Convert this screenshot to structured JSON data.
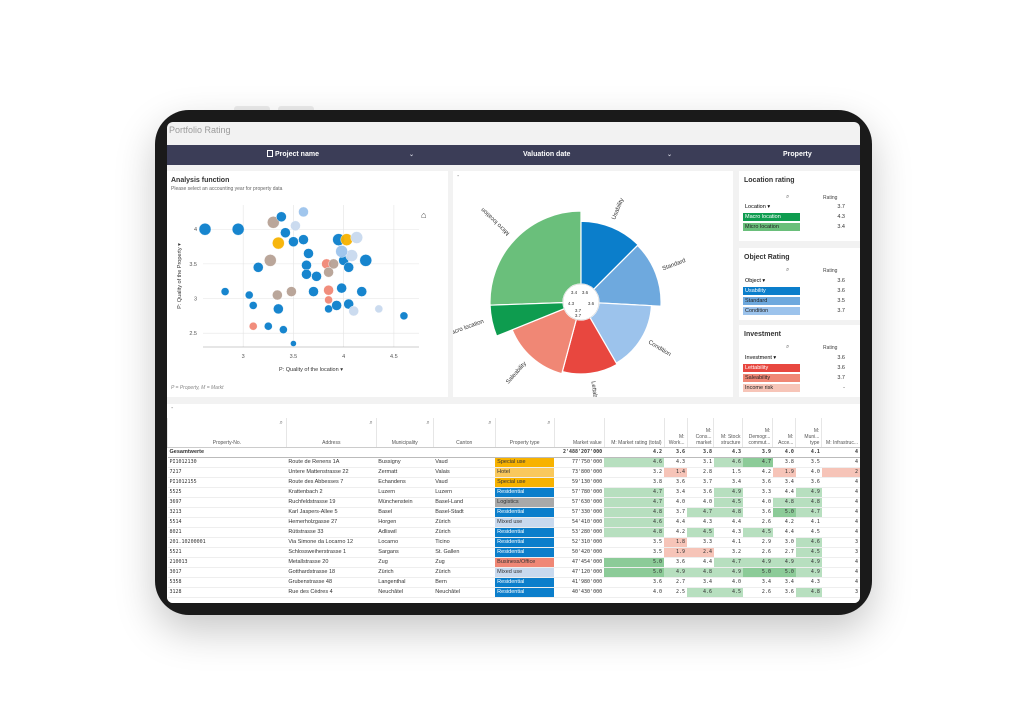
{
  "app": {
    "title": "Portfolio Rating"
  },
  "filters": [
    {
      "label": "Project name",
      "icon": "document-icon"
    },
    {
      "label": "Valuation date"
    },
    {
      "label": "Property"
    }
  ],
  "colors": {
    "header_bg": "#3b3d57",
    "dark_green": "#0e9c4f",
    "light_green": "#6abf7b",
    "dark_blue": "#0b7ecb",
    "light_blue": "#9cc3ec",
    "dark_red": "#e8473f",
    "light_red": "#f08775",
    "special_use": "#f7b200",
    "mixed_use": "#c8d9ee",
    "logistics": "#a9a9a9",
    "business": "#f08775"
  },
  "analysis": {
    "title": "Analysis function",
    "subtitle": "Please select an accounting year for property data",
    "xlabel": "P: Quality of the location",
    "ylabel": "P: Quality of the Property",
    "footnote": "P = Property, M = Markt",
    "xticks": [
      "3",
      "3.5",
      "4",
      "4.5"
    ],
    "yticks": [
      "4",
      "3.5",
      "3",
      "2.5"
    ]
  },
  "chart_data": [
    {
      "type": "scatter",
      "xlabel": "P: Quality of the location",
      "ylabel": "P: Quality of the Property",
      "xlim": [
        2.6,
        4.75
      ],
      "ylim": [
        2.3,
        4.35
      ],
      "series": [
        {
          "values": [
            {
              "x": 2.62,
              "y": 4.0,
              "c": "#0b7ecb",
              "r": 6
            },
            {
              "x": 2.95,
              "y": 4.0,
              "c": "#0b7ecb",
              "r": 6
            },
            {
              "x": 3.3,
              "y": 4.1,
              "c": "#b6a195",
              "r": 6
            },
            {
              "x": 3.38,
              "y": 4.18,
              "c": "#0b7ecb",
              "r": 5
            },
            {
              "x": 3.52,
              "y": 4.05,
              "c": "#c8d9ee",
              "r": 5
            },
            {
              "x": 3.6,
              "y": 4.25,
              "c": "#9cc3ec",
              "r": 5
            },
            {
              "x": 3.42,
              "y": 3.95,
              "c": "#0b7ecb",
              "r": 5
            },
            {
              "x": 3.5,
              "y": 3.82,
              "c": "#0b7ecb",
              "r": 5
            },
            {
              "x": 3.35,
              "y": 3.8,
              "c": "#f7b200",
              "r": 6
            },
            {
              "x": 3.6,
              "y": 3.85,
              "c": "#0b7ecb",
              "r": 5
            },
            {
              "x": 3.65,
              "y": 3.65,
              "c": "#0b7ecb",
              "r": 5
            },
            {
              "x": 3.27,
              "y": 3.55,
              "c": "#b6a195",
              "r": 6
            },
            {
              "x": 3.15,
              "y": 3.45,
              "c": "#0b7ecb",
              "r": 5
            },
            {
              "x": 3.63,
              "y": 3.48,
              "c": "#0b7ecb",
              "r": 5
            },
            {
              "x": 3.63,
              "y": 3.35,
              "c": "#0b7ecb",
              "r": 5
            },
            {
              "x": 3.83,
              "y": 3.5,
              "c": "#f08775",
              "r": 5
            },
            {
              "x": 3.9,
              "y": 3.5,
              "c": "#b6a195",
              "r": 5
            },
            {
              "x": 4.0,
              "y": 3.55,
              "c": "#0b7ecb",
              "r": 5
            },
            {
              "x": 3.95,
              "y": 3.85,
              "c": "#0b7ecb",
              "r": 6
            },
            {
              "x": 4.03,
              "y": 3.85,
              "c": "#f7b200",
              "r": 6
            },
            {
              "x": 4.13,
              "y": 3.88,
              "c": "#c8d9ee",
              "r": 6
            },
            {
              "x": 4.08,
              "y": 3.62,
              "c": "#c8d9ee",
              "r": 6
            },
            {
              "x": 4.22,
              "y": 3.55,
              "c": "#0b7ecb",
              "r": 6
            },
            {
              "x": 3.98,
              "y": 3.68,
              "c": "#9cc3ec",
              "r": 6
            },
            {
              "x": 3.85,
              "y": 3.38,
              "c": "#b6a195",
              "r": 5
            },
            {
              "x": 3.73,
              "y": 3.32,
              "c": "#0b7ecb",
              "r": 5
            },
            {
              "x": 4.05,
              "y": 3.45,
              "c": "#0b7ecb",
              "r": 5
            },
            {
              "x": 3.48,
              "y": 3.1,
              "c": "#b6a195",
              "r": 5
            },
            {
              "x": 3.7,
              "y": 3.1,
              "c": "#0b7ecb",
              "r": 5
            },
            {
              "x": 3.85,
              "y": 3.12,
              "c": "#f08775",
              "r": 5
            },
            {
              "x": 3.98,
              "y": 3.15,
              "c": "#0b7ecb",
              "r": 5
            },
            {
              "x": 4.18,
              "y": 3.1,
              "c": "#0b7ecb",
              "r": 5
            },
            {
              "x": 3.34,
              "y": 3.05,
              "c": "#b6a195",
              "r": 5
            },
            {
              "x": 2.82,
              "y": 3.1,
              "c": "#0b7ecb",
              "r": 4
            },
            {
              "x": 3.06,
              "y": 3.05,
              "c": "#0b7ecb",
              "r": 4
            },
            {
              "x": 3.1,
              "y": 2.9,
              "c": "#0b7ecb",
              "r": 4
            },
            {
              "x": 3.35,
              "y": 2.85,
              "c": "#0b7ecb",
              "r": 5
            },
            {
              "x": 3.85,
              "y": 2.98,
              "c": "#f08775",
              "r": 4
            },
            {
              "x": 3.85,
              "y": 2.85,
              "c": "#0b7ecb",
              "r": 4
            },
            {
              "x": 3.93,
              "y": 2.9,
              "c": "#0b7ecb",
              "r": 5
            },
            {
              "x": 4.05,
              "y": 2.92,
              "c": "#0b7ecb",
              "r": 5
            },
            {
              "x": 4.1,
              "y": 2.82,
              "c": "#c8d9ee",
              "r": 5
            },
            {
              "x": 4.35,
              "y": 2.85,
              "c": "#c8d9ee",
              "r": 4
            },
            {
              "x": 3.1,
              "y": 2.6,
              "c": "#f08775",
              "r": 4
            },
            {
              "x": 3.25,
              "y": 2.6,
              "c": "#0b7ecb",
              "r": 4
            },
            {
              "x": 3.4,
              "y": 2.55,
              "c": "#0b7ecb",
              "r": 4
            },
            {
              "x": 4.6,
              "y": 2.75,
              "c": "#0b7ecb",
              "r": 4
            },
            {
              "x": 3.5,
              "y": 2.35,
              "c": "#0b7ecb",
              "r": 3
            }
          ]
        }
      ]
    },
    {
      "type": "pie",
      "categories": [
        "Micro location",
        "Usability",
        "Standard",
        "Condition",
        "Lettability",
        "Saleability",
        "Macro location"
      ],
      "values": [
        3.4,
        3.6,
        3.5,
        3.7,
        3.6,
        3.7,
        4.3
      ],
      "slices": [
        {
          "label": "Micro location",
          "color": "#6abf7b",
          "start": -92,
          "end": 0,
          "r": 1.0
        },
        {
          "label": "Usability",
          "color": "#0b7ecb",
          "start": 0,
          "end": 45,
          "r": 0.86
        },
        {
          "label": "Standard",
          "color": "#6ea9de",
          "start": 45,
          "end": 93,
          "r": 0.85
        },
        {
          "label": "Condition",
          "color": "#9cc3ec",
          "start": 93,
          "end": 150,
          "r": 0.72
        },
        {
          "label": "Lettability",
          "color": "#e8473f",
          "start": 150,
          "end": 195,
          "r": 0.74
        },
        {
          "label": "Saleability",
          "color": "#f08775",
          "start": 195,
          "end": 248,
          "r": 0.77
        },
        {
          "label": "Macro location",
          "color": "#0e9c4f",
          "start": 248,
          "end": 268,
          "r": 1.0
        }
      ],
      "center_labels": [
        "3.4",
        "3.6",
        "4.3",
        "3.6",
        "3.7",
        "3.7"
      ]
    }
  ],
  "location_rating": {
    "title": "Location rating",
    "col_header": "Rating",
    "rows": [
      {
        "label": "Location",
        "value": "3.7",
        "color": ""
      },
      {
        "label": "Macro location",
        "value": "4.3",
        "color": "#0e9c4f"
      },
      {
        "label": "Micro location",
        "value": "3.4",
        "color": "#6abf7b"
      }
    ]
  },
  "object_rating": {
    "title": "Object Rating",
    "col_header": "Rating",
    "rows": [
      {
        "label": "Object",
        "value": "3.6",
        "color": ""
      },
      {
        "label": "Usability",
        "value": "3.6",
        "color": "#0b7ecb"
      },
      {
        "label": "Standard",
        "value": "3.5",
        "color": "#6ea9de"
      },
      {
        "label": "Condition",
        "value": "3.7",
        "color": "#9cc3ec"
      }
    ]
  },
  "investment": {
    "title": "Investment",
    "col_header": "Rating",
    "rows": [
      {
        "label": "Investment",
        "value": "3.6",
        "color": ""
      },
      {
        "label": "Lettability",
        "value": "3.6",
        "color": "#e8473f"
      },
      {
        "label": "Saleability",
        "value": "3.7",
        "color": "#f08775"
      },
      {
        "label": "Income risk",
        "value": "-",
        "color": "#f7c5b8"
      }
    ]
  },
  "table": {
    "columns": [
      "Property-No.",
      "Address",
      "Municipality",
      "Canton",
      "Property type",
      "Market value",
      "M: Market rating (total)",
      "M: Work...",
      "M: Cons... market",
      "M: Stock structure",
      "M: Demogr... commut...",
      "M: Acce...",
      "M: Muni... type",
      "M: Infrastruc..."
    ],
    "total": {
      "label": "Gesamtwerte",
      "market_value": "2'488'207'000",
      "ratings": [
        "4.2",
        "3.6",
        "3.8",
        "4.3",
        "3.9",
        "4.0",
        "4.1",
        "4"
      ]
    },
    "rows": [
      {
        "no": "PI1012130",
        "addr": "Route de Renens 1A",
        "muni": "Bussigny",
        "canton": "Vaud",
        "type": "Special use",
        "tc": "#f7b200",
        "mv": "77'750'000",
        "r": [
          "4.6",
          "4.3",
          "3.1",
          "4.6",
          "4.7",
          "3.8",
          "3.5",
          "4"
        ],
        "rc": [
          "g",
          "",
          "",
          "g",
          "G",
          "",
          "",
          ""
        ]
      },
      {
        "no": "7217",
        "addr": "Untere Mattenstrasse 22",
        "muni": "Zermatt",
        "canton": "Valais",
        "type": "Hotel",
        "tc": "#f9c85c",
        "mv": "73'800'000",
        "r": [
          "3.2",
          "1.4",
          "2.8",
          "1.5",
          "4.2",
          "1.9",
          "4.0",
          "2"
        ],
        "rc": [
          "",
          "r",
          "",
          "",
          "",
          "r",
          "",
          "r"
        ]
      },
      {
        "no": "PI1012155",
        "addr": "Route des Abbesses 7",
        "muni": "Echandens",
        "canton": "Vaud",
        "type": "Special use",
        "tc": "#f7b200",
        "mv": "59'130'000",
        "r": [
          "3.8",
          "3.6",
          "3.7",
          "3.4",
          "3.6",
          "3.4",
          "3.6",
          "4"
        ],
        "rc": [
          "",
          "",
          "",
          "",
          "",
          "",
          "",
          ""
        ]
      },
      {
        "no": "5525",
        "addr": "Krattenbach 2",
        "muni": "Luzern",
        "canton": "Luzern",
        "type": "Residential",
        "tc": "#0b7ecb",
        "mv": "57'780'000",
        "r": [
          "4.7",
          "3.4",
          "3.6",
          "4.9",
          "3.3",
          "4.4",
          "4.9",
          "4"
        ],
        "rc": [
          "g",
          "",
          "",
          "g",
          "",
          "",
          "g",
          ""
        ]
      },
      {
        "no": "3697",
        "addr": "Ruchfeldstrasse 19",
        "muni": "Münchenstein",
        "canton": "Basel-Land",
        "type": "Logistics",
        "tc": "#a9a9a9",
        "mv": "57'630'000",
        "r": [
          "4.7",
          "4.0",
          "4.0",
          "4.5",
          "4.0",
          "4.8",
          "4.8",
          "4"
        ],
        "rc": [
          "g",
          "",
          "",
          "g",
          "",
          "g",
          "g",
          ""
        ]
      },
      {
        "no": "3213",
        "addr": "Karl Jaspers-Allee 5",
        "muni": "Basel",
        "canton": "Basel-Stadt",
        "type": "Residential",
        "tc": "#0b7ecb",
        "mv": "57'330'000",
        "r": [
          "4.8",
          "3.7",
          "4.7",
          "4.8",
          "3.6",
          "5.0",
          "4.7",
          "4"
        ],
        "rc": [
          "g",
          "",
          "g",
          "g",
          "",
          "G",
          "g",
          ""
        ]
      },
      {
        "no": "5514",
        "addr": "Hemerholzgasse 27",
        "muni": "Horgen",
        "canton": "Zürich",
        "type": "Mixed use",
        "tc": "#c8d9ee",
        "mv": "54'410'000",
        "r": [
          "4.6",
          "4.4",
          "4.3",
          "4.4",
          "2.6",
          "4.2",
          "4.1",
          "4"
        ],
        "rc": [
          "g",
          "",
          "",
          "",
          "",
          "",
          "",
          ""
        ]
      },
      {
        "no": "8021",
        "addr": "Rütistrasse 33",
        "muni": "Adliswil",
        "canton": "Zürich",
        "type": "Residential",
        "tc": "#0b7ecb",
        "mv": "53'280'000",
        "r": [
          "4.8",
          "4.2",
          "4.5",
          "4.3",
          "4.5",
          "4.4",
          "4.5",
          "4"
        ],
        "rc": [
          "g",
          "",
          "g",
          "",
          "g",
          "",
          "",
          ""
        ]
      },
      {
        "no": "201.10200001",
        "addr": "Via Simone da Locarno 12",
        "muni": "Locarno",
        "canton": "Ticino",
        "type": "Residential",
        "tc": "#0b7ecb",
        "mv": "52'310'000",
        "r": [
          "3.5",
          "1.8",
          "3.3",
          "4.1",
          "2.9",
          "3.0",
          "4.6",
          "3"
        ],
        "rc": [
          "",
          "r",
          "",
          "",
          "",
          "",
          "g",
          ""
        ]
      },
      {
        "no": "5521",
        "addr": "Schlossweiherstrasse 1",
        "muni": "Sargans",
        "canton": "St. Gallen",
        "type": "Residential",
        "tc": "#0b7ecb",
        "mv": "50'420'000",
        "r": [
          "3.5",
          "1.9",
          "2.4",
          "3.2",
          "2.6",
          "2.7",
          "4.5",
          "3"
        ],
        "rc": [
          "",
          "r",
          "r",
          "",
          "",
          "",
          "g",
          ""
        ]
      },
      {
        "no": "210013",
        "addr": "Metallstrasse 20",
        "muni": "Zug",
        "canton": "Zug",
        "type": "Business/Office",
        "tc": "#f08775",
        "mv": "47'454'000",
        "r": [
          "5.0",
          "3.6",
          "4.4",
          "4.7",
          "4.9",
          "4.9",
          "4.9",
          "4"
        ],
        "rc": [
          "G",
          "",
          "",
          "g",
          "g",
          "g",
          "g",
          ""
        ]
      },
      {
        "no": "3017",
        "addr": "Gotthardstrasse 18",
        "muni": "Zürich",
        "canton": "Zürich",
        "type": "Mixed use",
        "tc": "#c8d9ee",
        "mv": "47'120'000",
        "r": [
          "5.0",
          "4.9",
          "4.8",
          "4.9",
          "5.0",
          "5.0",
          "4.9",
          "4"
        ],
        "rc": [
          "G",
          "g",
          "g",
          "g",
          "G",
          "G",
          "g",
          ""
        ]
      },
      {
        "no": "5358",
        "addr": "Grubenstrasse 48",
        "muni": "Langenthal",
        "canton": "Bern",
        "type": "Residential",
        "tc": "#0b7ecb",
        "mv": "41'980'000",
        "r": [
          "3.6",
          "2.7",
          "3.4",
          "4.0",
          "3.4",
          "3.4",
          "4.3",
          "4"
        ],
        "rc": [
          "",
          "",
          "",
          "",
          "",
          "",
          "",
          ""
        ]
      },
      {
        "no": "3128",
        "addr": "Rue des Cèdres 4",
        "muni": "Neuchâtel",
        "canton": "Neuchâtel",
        "type": "Residential",
        "tc": "#0b7ecb",
        "mv": "40'430'000",
        "r": [
          "4.0",
          "2.5",
          "4.6",
          "4.5",
          "2.6",
          "3.6",
          "4.8",
          "3"
        ],
        "rc": [
          "",
          "",
          "g",
          "g",
          "",
          "",
          "g",
          ""
        ]
      }
    ]
  }
}
